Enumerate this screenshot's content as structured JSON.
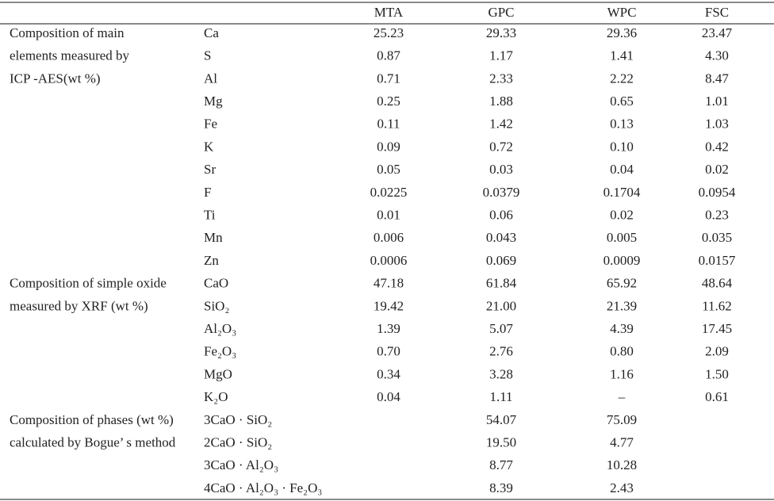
{
  "table": {
    "header": [
      "MTA",
      "GPC",
      "WPC",
      "FSC"
    ],
    "groups": [
      {
        "label": [
          "Composition of main",
          "elements measured by",
          "ICP -AES(wt %)"
        ],
        "rows": [
          {
            "item": "Ca",
            "values": [
              "25.23",
              "29.33",
              "29.36",
              "23.47"
            ]
          },
          {
            "item": "S",
            "values": [
              "0.87",
              "1.17",
              "1.41",
              "4.30"
            ]
          },
          {
            "item": "Al",
            "values": [
              "0.71",
              "2.33",
              "2.22",
              "8.47"
            ]
          },
          {
            "item": "Mg",
            "values": [
              "0.25",
              "1.88",
              "0.65",
              "1.01"
            ]
          },
          {
            "item": "Fe",
            "values": [
              "0.11",
              "1.42",
              "0.13",
              "1.03"
            ]
          },
          {
            "item": "K",
            "values": [
              "0.09",
              "0.72",
              "0.10",
              "0.42"
            ]
          },
          {
            "item": "Sr",
            "values": [
              "0.05",
              "0.03",
              "0.04",
              "0.02"
            ]
          },
          {
            "item": "F",
            "values": [
              "0.0225",
              "0.0379",
              "0.1704",
              "0.0954"
            ]
          },
          {
            "item": "Ti",
            "values": [
              "0.01",
              "0.06",
              "0.02",
              "0.23"
            ]
          },
          {
            "item": "Mn",
            "values": [
              "0.006",
              "0.043",
              "0.005",
              "0.035"
            ]
          },
          {
            "item": "Zn",
            "values": [
              "0.0006",
              "0.069",
              "0.0009",
              "0.0157"
            ]
          }
        ]
      },
      {
        "label": [
          "Composition of simple oxide",
          "measured by XRF (wt %)"
        ],
        "rows": [
          {
            "item": "CaO",
            "values": [
              "47.18",
              "61.84",
              "65.92",
              "48.64"
            ]
          },
          {
            "item": "SiO₂",
            "values": [
              "19.42",
              "21.00",
              "21.39",
              "11.62"
            ]
          },
          {
            "item": "Al₂O₃",
            "values": [
              "1.39",
              "5.07",
              "4.39",
              "17.45"
            ]
          },
          {
            "item": "Fe₂O₃",
            "values": [
              "0.70",
              "2.76",
              "0.80",
              "2.09"
            ]
          },
          {
            "item": "MgO",
            "values": [
              "0.34",
              "3.28",
              "1.16",
              "1.50"
            ]
          },
          {
            "item": "K₂O",
            "values": [
              "0.04",
              "1.11",
              "–",
              "0.61"
            ]
          }
        ]
      },
      {
        "label": [
          "Composition of phases (wt %)",
          "calculated by Bogue’ s method"
        ],
        "rows": [
          {
            "item": "3CaO · SiO₂",
            "values": [
              null,
              "54.07",
              "75.09",
              null
            ]
          },
          {
            "item": "2CaO · SiO₂",
            "values": [
              null,
              "19.50",
              "4.77",
              null
            ]
          },
          {
            "item": "3CaO · Al₂O₃",
            "values": [
              null,
              "8.77",
              "10.28",
              null
            ]
          },
          {
            "item": "4CaO · Al₂O₃ · Fe₂O₃",
            "values": [
              null,
              "8.39",
              "2.43",
              null
            ]
          }
        ]
      }
    ]
  }
}
